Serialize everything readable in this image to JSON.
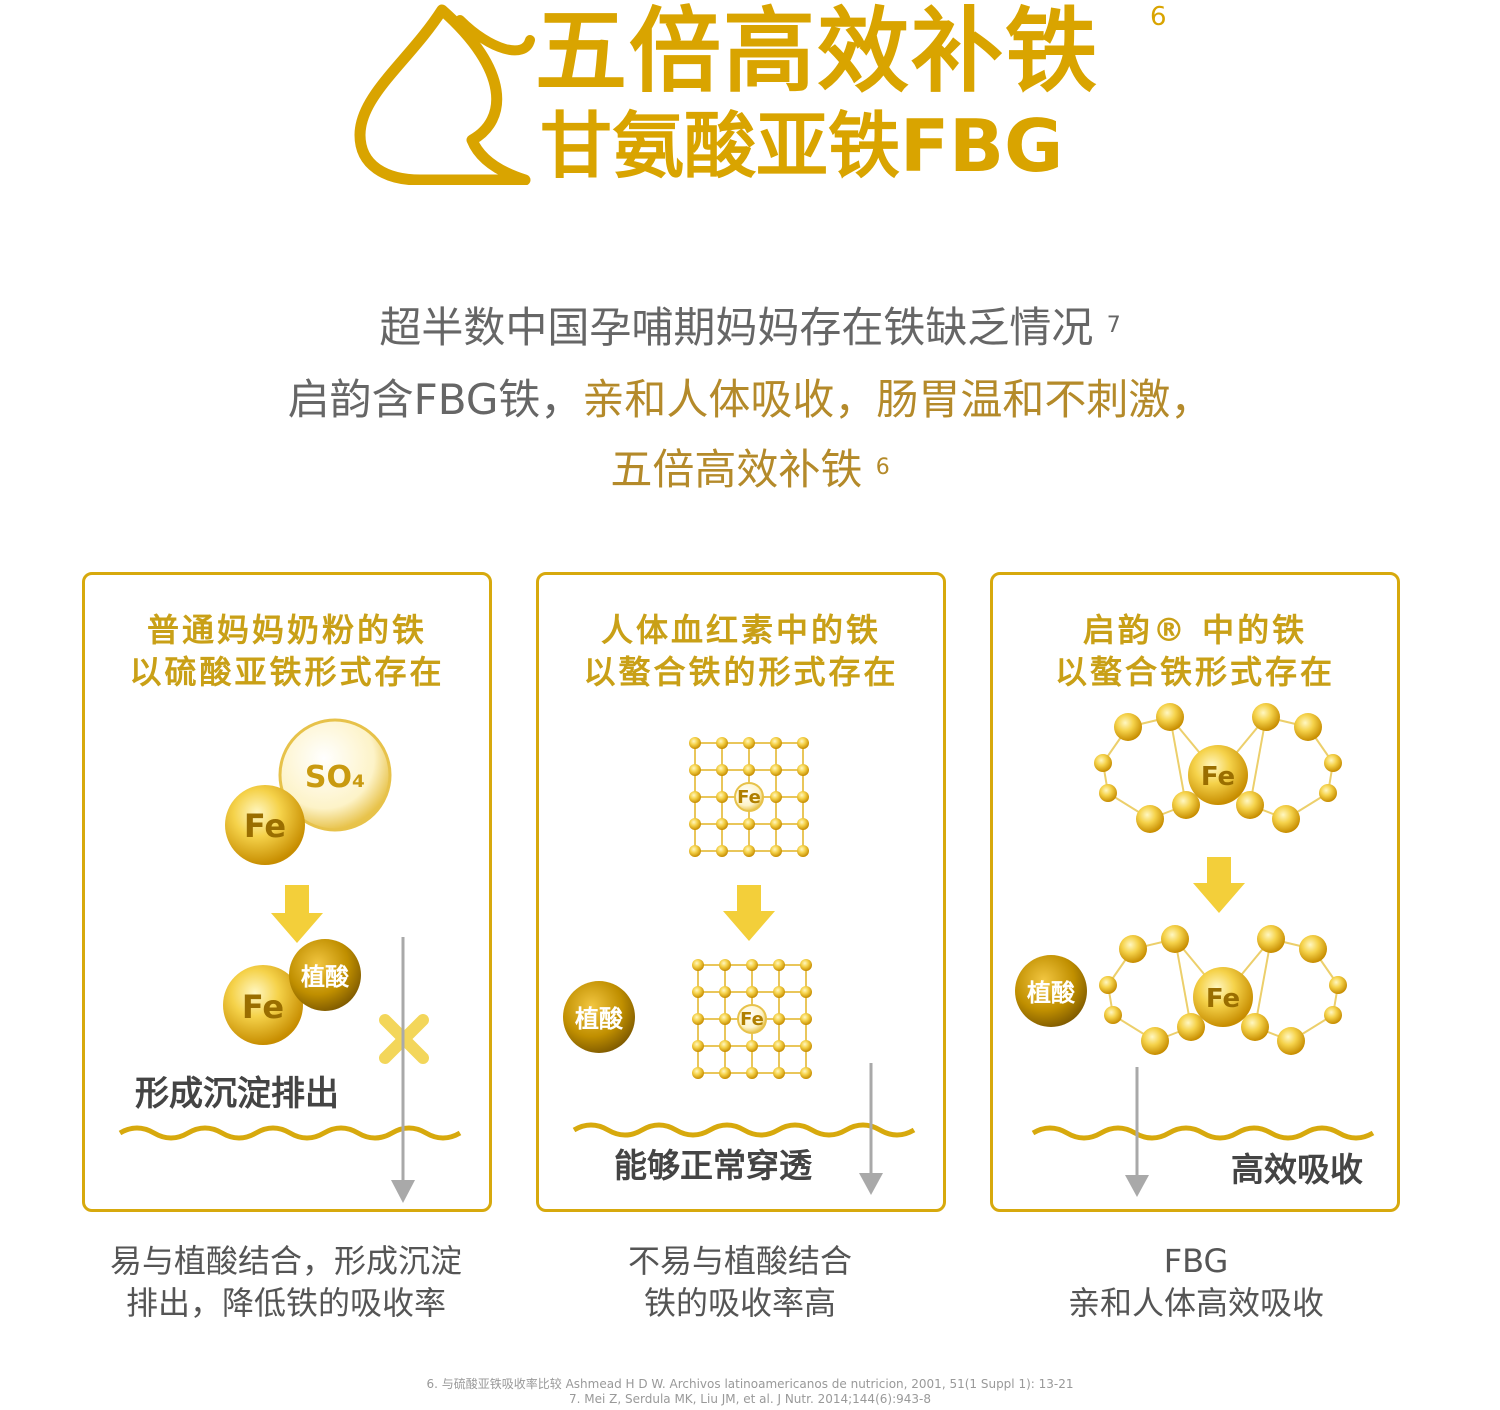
{
  "header": {
    "title": "五倍高效补铁",
    "title_ref": "6",
    "subtitle": "甘氨酸亚铁FBG"
  },
  "intro": {
    "line1": "超半数中国孕哺期妈妈存在铁缺乏情况",
    "line1_ref": "7",
    "line2_plain": "启韵含FBG铁，",
    "line2_highlight": "亲和人体吸收，肠胃温和不刺激，",
    "line3": "五倍高效补铁",
    "line3_ref": "6"
  },
  "panels": [
    {
      "title_line1": "普通妈妈奶粉的铁",
      "title_line2": "以硫酸亚铁形式存在",
      "molecule_a": "SO₄",
      "molecule_b": "Fe",
      "binder": "植酸",
      "iron": "Fe",
      "label": "形成沉淀排出"
    },
    {
      "title_line1": "人体血红素中的铁",
      "title_line2": "以螯合铁的形式存在",
      "iron_top": "Fe",
      "binder": "植酸",
      "iron_bottom": "Fe",
      "label": "能够正常穿透"
    },
    {
      "title_line1": "启韵® 中的铁",
      "title_line2": "以螯合铁形式存在",
      "iron_top": "Fe",
      "binder": "植酸",
      "iron_bottom": "Fe",
      "label": "高效吸收"
    }
  ],
  "captions": [
    {
      "line1": "易与植酸结合，形成沉淀",
      "line2": "排出，降低铁的吸收率"
    },
    {
      "line1": "不易与植酸结合",
      "line2": "铁的吸收率高"
    },
    {
      "line1": "FBG",
      "line2": "亲和人体高效吸收"
    }
  ],
  "footnotes": [
    "6. 与硫酸亚铁吸收率比较 Ashmead H D W. Archivos latinoamericanos de nutricion, 2001, 51(1 Suppl 1): 13-21",
    "7. Mei Z, Serdula MK, Liu JM, et al. J Nutr. 2014;144(6):943-8"
  ],
  "colors": {
    "gold": "#d9a400",
    "panel_border": "#d7a90d",
    "highlight_text": "#b48a2a",
    "arrow": "#f3cf3a",
    "gray_arrow": "#a9a9a9"
  }
}
